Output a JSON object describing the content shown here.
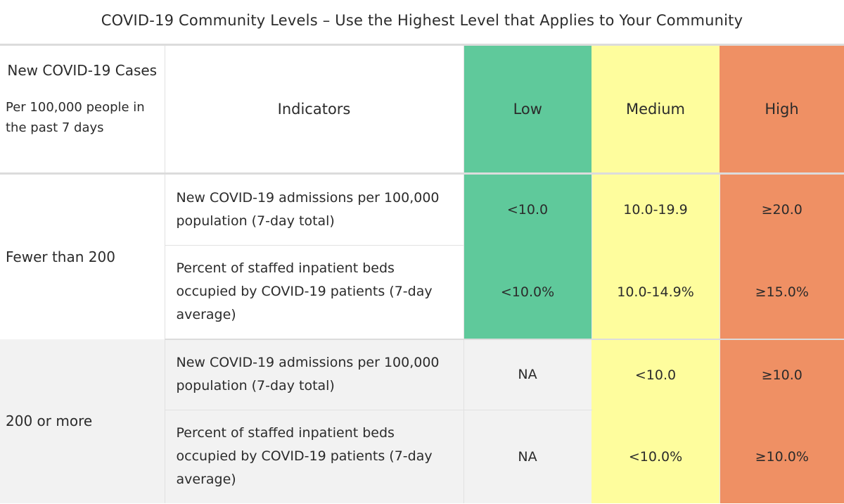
{
  "title": "COVID-19 Community Levels – Use the Highest Level that Applies to Your Community",
  "header": {
    "cases_main": "New COVID-19 Cases",
    "cases_sub": "Per 100,000 people in the past 7 days",
    "indicators": "Indicators",
    "low": "Low",
    "medium": "Medium",
    "high": "High"
  },
  "groups": [
    {
      "label": "Fewer than 200",
      "rows": [
        {
          "indicator": "New COVID-19 admissions per 100,000 population (7-day total)",
          "low": "<10.0",
          "medium": "10.0-19.9",
          "high": "≥20.0"
        },
        {
          "indicator": "Percent of staffed inpatient beds occupied by COVID-19 patients (7-day average)",
          "low": "<10.0%",
          "medium": "10.0-14.9%",
          "high": "≥15.0%"
        }
      ]
    },
    {
      "label": "200 or more",
      "rows": [
        {
          "indicator": "New COVID-19 admissions per 100,000 population (7-day total)",
          "low": "NA",
          "medium": "<10.0",
          "high": "≥10.0"
        },
        {
          "indicator": "Percent of staffed inpatient beds occupied by COVID-19 patients (7-day average)",
          "low": "NA",
          "medium": "<10.0%",
          "high": "≥10.0%"
        }
      ]
    }
  ],
  "colors": {
    "low": "#5fc99b",
    "medium": "#fefd9d",
    "high": "#ef9064",
    "na": "#f2f2f2"
  }
}
